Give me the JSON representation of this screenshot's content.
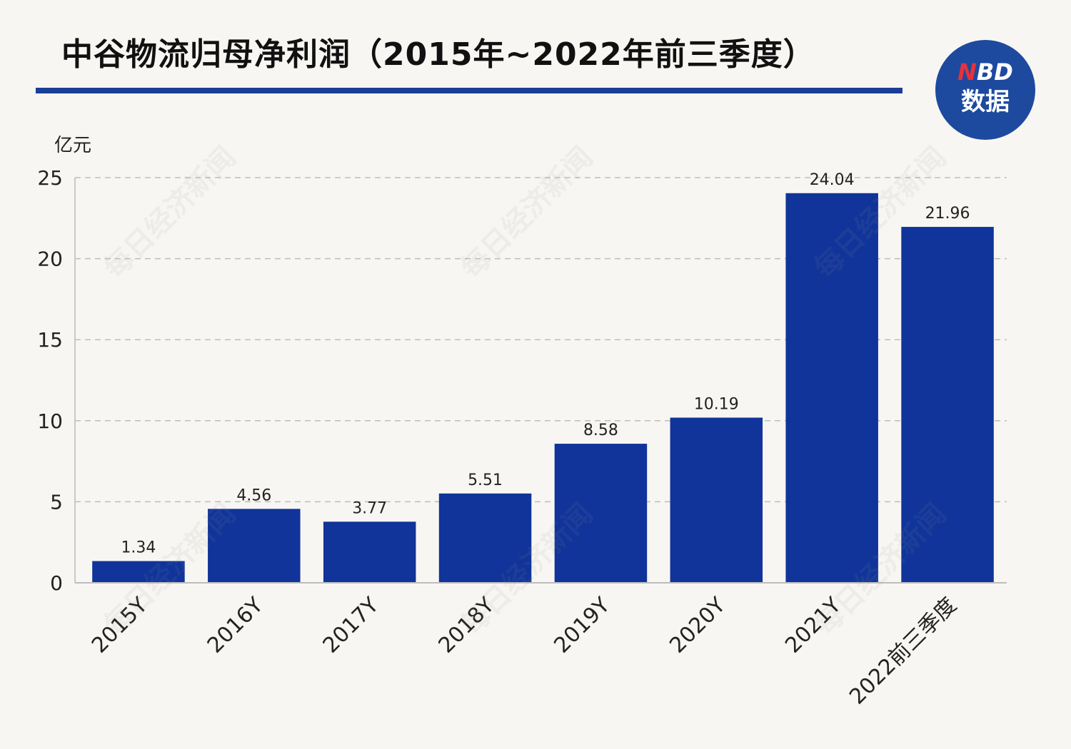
{
  "header": {
    "title": "中谷物流归母净利润（2015年~2022年前三季度）"
  },
  "logo": {
    "brand_accent": "N",
    "brand_rest": "BD",
    "sub": "数据"
  },
  "watermark": {
    "text": "每日经济新闻"
  },
  "colors": {
    "bar": "#10349a",
    "title_rule": "#1a3f96",
    "logo_bg": "#1d4a9e",
    "logo_accent": "#e8313a",
    "background": "#f8f6f2"
  },
  "chart_data": {
    "type": "bar",
    "title": "中谷物流归母净利润（2015年~2022年前三季度）",
    "ylabel": "亿元",
    "xlabel": "",
    "categories": [
      "2015Y",
      "2016Y",
      "2017Y",
      "2018Y",
      "2019Y",
      "2020Y",
      "2021Y",
      "2022前三季度"
    ],
    "values": [
      1.34,
      4.56,
      3.77,
      5.51,
      8.58,
      10.19,
      24.04,
      21.96
    ],
    "value_labels": [
      "1.34",
      "4.56",
      "3.77",
      "5.51",
      "8.58",
      "10.19",
      "24.04",
      "21.96"
    ],
    "ylim": [
      0,
      25
    ],
    "yticks": [
      0,
      5,
      10,
      15,
      20,
      25
    ],
    "grid": true,
    "legend": "none"
  }
}
